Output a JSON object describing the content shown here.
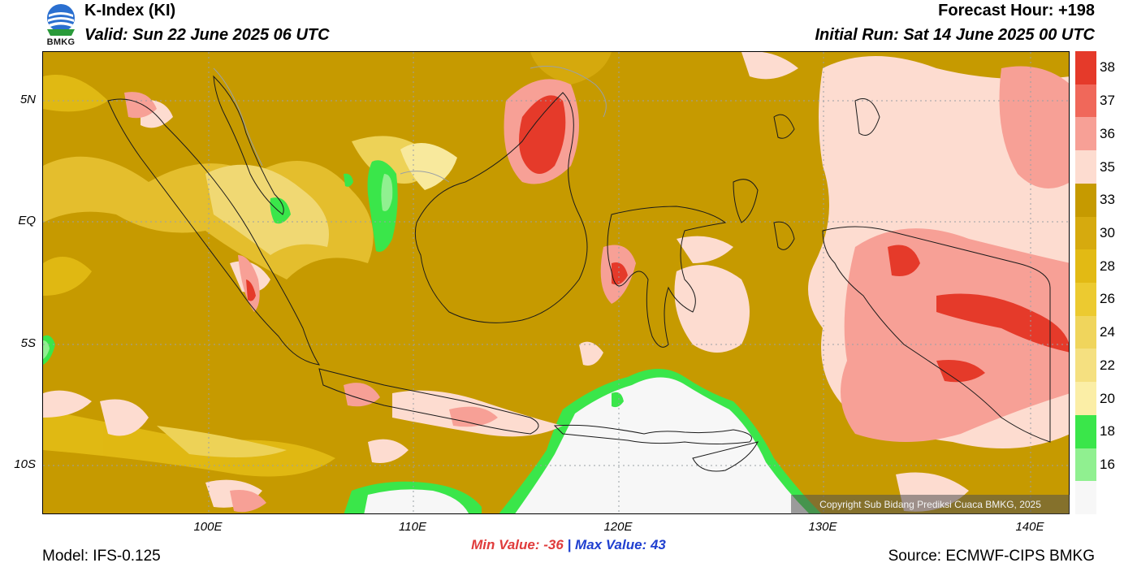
{
  "header": {
    "title": "K-Index (KI)",
    "valid": "Valid: Sun 22 June 2025 06 UTC",
    "forecast_hour": "Forecast Hour: +198",
    "initial_run": "Initial Run: Sat 14 June 2025 00 UTC",
    "logo_text": "BMKG"
  },
  "map": {
    "y_ticks": [
      "5N",
      "EQ",
      "5S",
      "10S"
    ],
    "x_ticks": [
      "100E",
      "110E",
      "120E",
      "130E",
      "140E"
    ],
    "copyright": "Copyright Sub Bidang Prediksi Cuaca BMKG, 2025",
    "background_color": "#c69a00",
    "grid": true
  },
  "colorbar": {
    "labels": [
      "38",
      "37",
      "36",
      "35",
      "33",
      "30",
      "28",
      "26",
      "24",
      "22",
      "20",
      "18",
      "16"
    ],
    "colors": [
      "#e53a2a",
      "#f0685a",
      "#f7a096",
      "#fddcd0",
      "#c69a00",
      "#d6aa0e",
      "#e2ba14",
      "#ecca30",
      "#f0d55c",
      "#f5e080",
      "#fbeea6",
      "#3ae64a",
      "#90f090",
      "#f7f7f7"
    ]
  },
  "stats": {
    "min_label": "Min Value: -36",
    "separator": "|",
    "max_label": "Max Value:  43"
  },
  "footer": {
    "model": "Model: IFS-0.125",
    "source": "Source: ECMWF-CIPS BMKG"
  }
}
